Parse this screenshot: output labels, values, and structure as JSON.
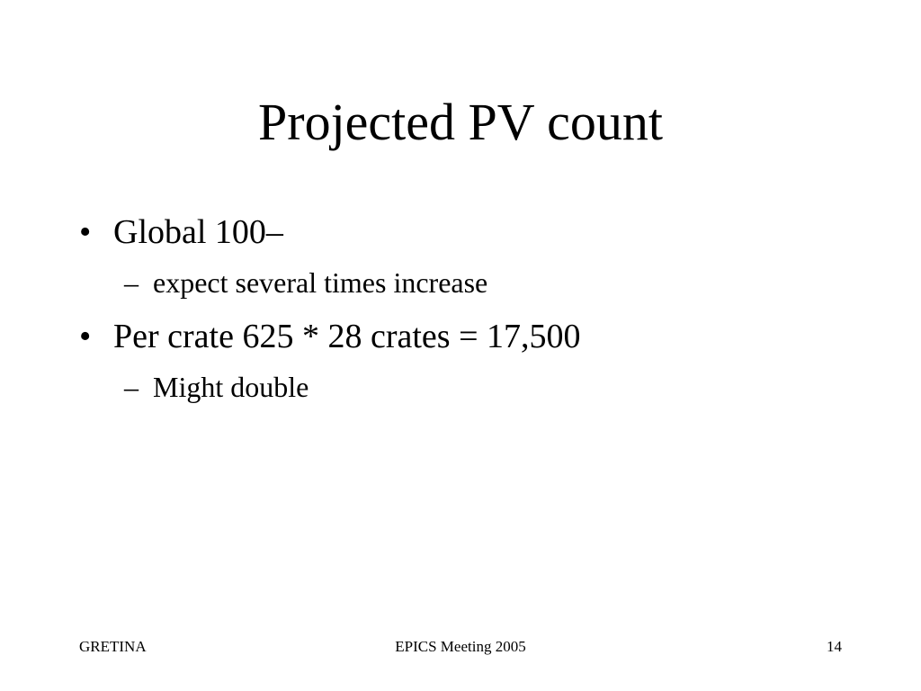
{
  "slide": {
    "title": "Projected PV count",
    "bullets": [
      {
        "marker": "•",
        "text": "Global 100–",
        "sub": [
          {
            "marker": "–",
            "text": "expect several times increase"
          }
        ]
      },
      {
        "marker": "•",
        "text": "Per crate 625 * 28 crates = 17,500",
        "sub": [
          {
            "marker": "–",
            "text": "Might double"
          }
        ]
      }
    ]
  },
  "footer": {
    "left": "GRETINA",
    "center": "EPICS Meeting 2005",
    "right": "14"
  }
}
